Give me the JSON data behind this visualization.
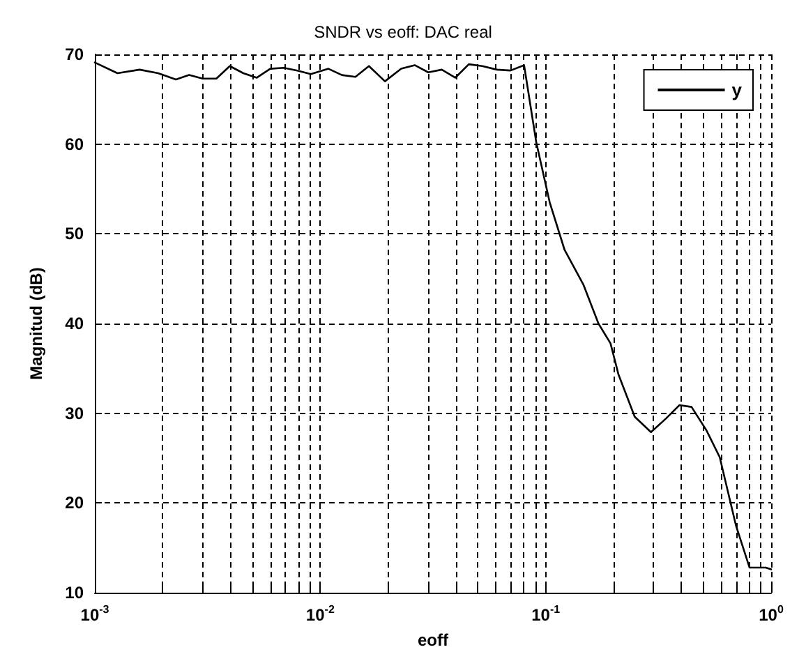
{
  "chart_data": {
    "type": "line",
    "title": "SNDR vs eoff: DAC real",
    "xlabel": "eoff",
    "ylabel": "Magnitud (dB)",
    "log": "x",
    "grid": true,
    "legend": "top right",
    "marker": "none",
    "line_style": "solid",
    "xlim": [
      0.001,
      1
    ],
    "ylim": [
      10,
      70
    ],
    "xticks": [
      {
        "value": 0.001,
        "label": "10$^{-3}$"
      },
      {
        "value": 0.002,
        "label": null
      },
      {
        "value": 0.003,
        "label": null
      },
      {
        "value": 0.004,
        "label": null
      },
      {
        "value": 0.005,
        "label": null
      },
      {
        "value": 0.006,
        "label": null
      },
      {
        "value": 0.007,
        "label": null
      },
      {
        "value": 0.008,
        "label": null
      },
      {
        "value": 0.009,
        "label": null
      },
      {
        "value": 0.01,
        "label": "10$^{-2}$"
      },
      {
        "value": 0.02,
        "label": null
      },
      {
        "value": 0.03,
        "label": null
      },
      {
        "value": 0.04,
        "label": null
      },
      {
        "value": 0.05,
        "label": null
      },
      {
        "value": 0.06,
        "label": null
      },
      {
        "value": 0.07,
        "label": null
      },
      {
        "value": 0.08,
        "label": null
      },
      {
        "value": 0.09,
        "label": null
      },
      {
        "value": 0.1,
        "label": "10$^{-1}$"
      },
      {
        "value": 0.2,
        "label": null
      },
      {
        "value": 0.3,
        "label": null
      },
      {
        "value": 0.4,
        "label": null
      },
      {
        "value": 0.5,
        "label": null
      },
      {
        "value": 0.6,
        "label": null
      },
      {
        "value": 0.7,
        "label": null
      },
      {
        "value": 0.8,
        "label": null
      },
      {
        "value": 0.9,
        "label": null
      },
      {
        "value": 1,
        "label": "10$^{0}$"
      }
    ],
    "yticks": [
      10,
      20,
      30,
      40,
      50,
      60,
      70
    ],
    "x": [
      0.001,
      0.00126,
      0.00158,
      0.00191,
      0.00229,
      0.00262,
      0.00301,
      0.00346,
      0.00397,
      0.00456,
      0.00523,
      0.006,
      0.00689,
      0.00791,
      0.00908,
      0.01087,
      0.01247,
      0.01432,
      0.01644,
      0.01936,
      0.02286,
      0.02624,
      0.03013,
      0.0346,
      0.0397,
      0.0456,
      0.0523,
      0.0608,
      0.0698,
      0.0802,
      0.0908,
      0.1042,
      0.1213,
      0.1472,
      0.1714,
      0.1938,
      0.2104,
      0.2483,
      0.2931,
      0.3412,
      0.3917,
      0.4436,
      0.5164,
      0.5916,
      0.698,
      0.8017,
      0.946,
      1
    ],
    "series": [
      {
        "name": "y",
        "color": "#000000",
        "values": [
          69.1,
          67.9,
          68.3,
          67.9,
          67.2,
          67.7,
          67.3,
          67.3,
          68.7,
          67.9,
          67.4,
          68.4,
          68.5,
          68.2,
          67.8,
          68.4,
          67.7,
          67.5,
          68.7,
          67.0,
          68.4,
          68.8,
          68.0,
          68.3,
          67.4,
          68.9,
          68.7,
          68.3,
          68.2,
          68.8,
          60.2,
          53.5,
          48.2,
          44.3,
          40.0,
          37.8,
          34.3,
          29.6,
          27.9,
          29.4,
          30.9,
          30.7,
          28.1,
          25.1,
          17.5,
          12.8,
          12.8,
          12.6
        ]
      }
    ]
  }
}
